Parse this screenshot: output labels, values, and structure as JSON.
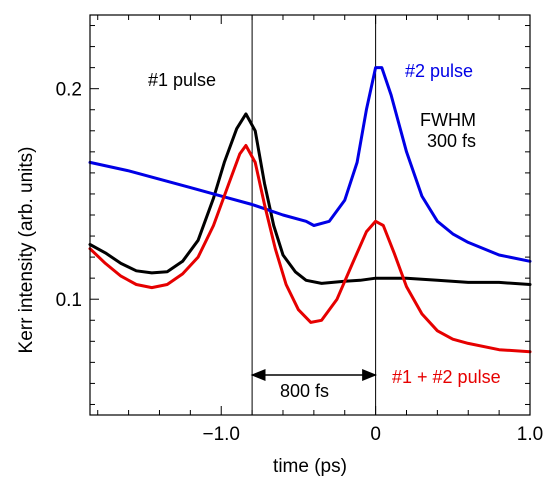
{
  "chart_data": {
    "type": "line",
    "xlabel": "time (ps)",
    "ylabel": "Kerr intensity (arb. units)",
    "xlim": [
      -1.85,
      1.0
    ],
    "ylim": [
      0.045,
      0.235
    ],
    "x_ticks": [
      {
        "value": -1.0,
        "label": "−1.0"
      },
      {
        "value": 0.0,
        "label": "0"
      },
      {
        "value": 1.0,
        "label": "1.0"
      }
    ],
    "y_ticks": [
      {
        "value": 0.1,
        "label": "0.1"
      },
      {
        "value": 0.2,
        "label": "0.2"
      }
    ],
    "grid": false,
    "series": [
      {
        "name": "#1 pulse",
        "color": "#000000",
        "points": [
          [
            -1.85,
            0.126
          ],
          [
            -1.75,
            0.122
          ],
          [
            -1.65,
            0.117
          ],
          [
            -1.55,
            0.1135
          ],
          [
            -1.45,
            0.1125
          ],
          [
            -1.35,
            0.113
          ],
          [
            -1.25,
            0.118
          ],
          [
            -1.15,
            0.128
          ],
          [
            -1.05,
            0.148
          ],
          [
            -0.98,
            0.165
          ],
          [
            -0.9,
            0.181
          ],
          [
            -0.84,
            0.188
          ],
          [
            -0.78,
            0.18
          ],
          [
            -0.72,
            0.155
          ],
          [
            -0.66,
            0.135
          ],
          [
            -0.6,
            0.121
          ],
          [
            -0.52,
            0.113
          ],
          [
            -0.45,
            0.109
          ],
          [
            -0.35,
            0.1075
          ],
          [
            -0.2,
            0.1085
          ],
          [
            -0.1,
            0.109
          ],
          [
            0.0,
            0.11
          ],
          [
            0.2,
            0.11
          ],
          [
            0.4,
            0.109
          ],
          [
            0.6,
            0.108
          ],
          [
            0.8,
            0.108
          ],
          [
            1.0,
            0.107
          ]
        ]
      },
      {
        "name": "#2 pulse",
        "color": "#0000e6",
        "points": [
          [
            -1.85,
            0.165
          ],
          [
            -1.6,
            0.161
          ],
          [
            -1.4,
            0.157
          ],
          [
            -1.2,
            0.153
          ],
          [
            -1.0,
            0.149
          ],
          [
            -0.8,
            0.145
          ],
          [
            -0.6,
            0.14
          ],
          [
            -0.45,
            0.137
          ],
          [
            -0.4,
            0.135
          ],
          [
            -0.3,
            0.137
          ],
          [
            -0.2,
            0.147
          ],
          [
            -0.12,
            0.165
          ],
          [
            -0.06,
            0.19
          ],
          [
            0.0,
            0.21
          ],
          [
            0.04,
            0.21
          ],
          [
            0.1,
            0.197
          ],
          [
            0.2,
            0.17
          ],
          [
            0.3,
            0.149
          ],
          [
            0.4,
            0.137
          ],
          [
            0.5,
            0.131
          ],
          [
            0.6,
            0.127
          ],
          [
            0.8,
            0.121
          ],
          [
            1.0,
            0.118
          ]
        ]
      },
      {
        "name": "#1 + #2 pulse",
        "color": "#e60000",
        "points": [
          [
            -1.85,
            0.124
          ],
          [
            -1.75,
            0.117
          ],
          [
            -1.65,
            0.111
          ],
          [
            -1.55,
            0.107
          ],
          [
            -1.45,
            0.1055
          ],
          [
            -1.35,
            0.107
          ],
          [
            -1.25,
            0.112
          ],
          [
            -1.15,
            0.12
          ],
          [
            -1.05,
            0.135
          ],
          [
            -0.95,
            0.155
          ],
          [
            -0.88,
            0.169
          ],
          [
            -0.84,
            0.173
          ],
          [
            -0.78,
            0.165
          ],
          [
            -0.72,
            0.145
          ],
          [
            -0.65,
            0.124
          ],
          [
            -0.58,
            0.107
          ],
          [
            -0.5,
            0.095
          ],
          [
            -0.42,
            0.089
          ],
          [
            -0.35,
            0.09
          ],
          [
            -0.25,
            0.1
          ],
          [
            -0.15,
            0.117
          ],
          [
            -0.06,
            0.132
          ],
          [
            0.0,
            0.137
          ],
          [
            0.05,
            0.135
          ],
          [
            0.12,
            0.122
          ],
          [
            0.2,
            0.106
          ],
          [
            0.3,
            0.093
          ],
          [
            0.4,
            0.085
          ],
          [
            0.5,
            0.081
          ],
          [
            0.6,
            0.079
          ],
          [
            0.8,
            0.076
          ],
          [
            1.0,
            0.075
          ]
        ]
      }
    ],
    "vlines": [
      -0.8,
      0.0
    ],
    "annotations": {
      "pulse1": "#1 pulse",
      "pulse2": "#2 pulse",
      "fwhm_line1": "FWHM",
      "fwhm_line2": "300 fs",
      "sum": "#1 + #2 pulse",
      "delay": "800 fs"
    },
    "delay_arrow": {
      "from": -0.8,
      "to": 0.0,
      "y": 0.064
    }
  }
}
